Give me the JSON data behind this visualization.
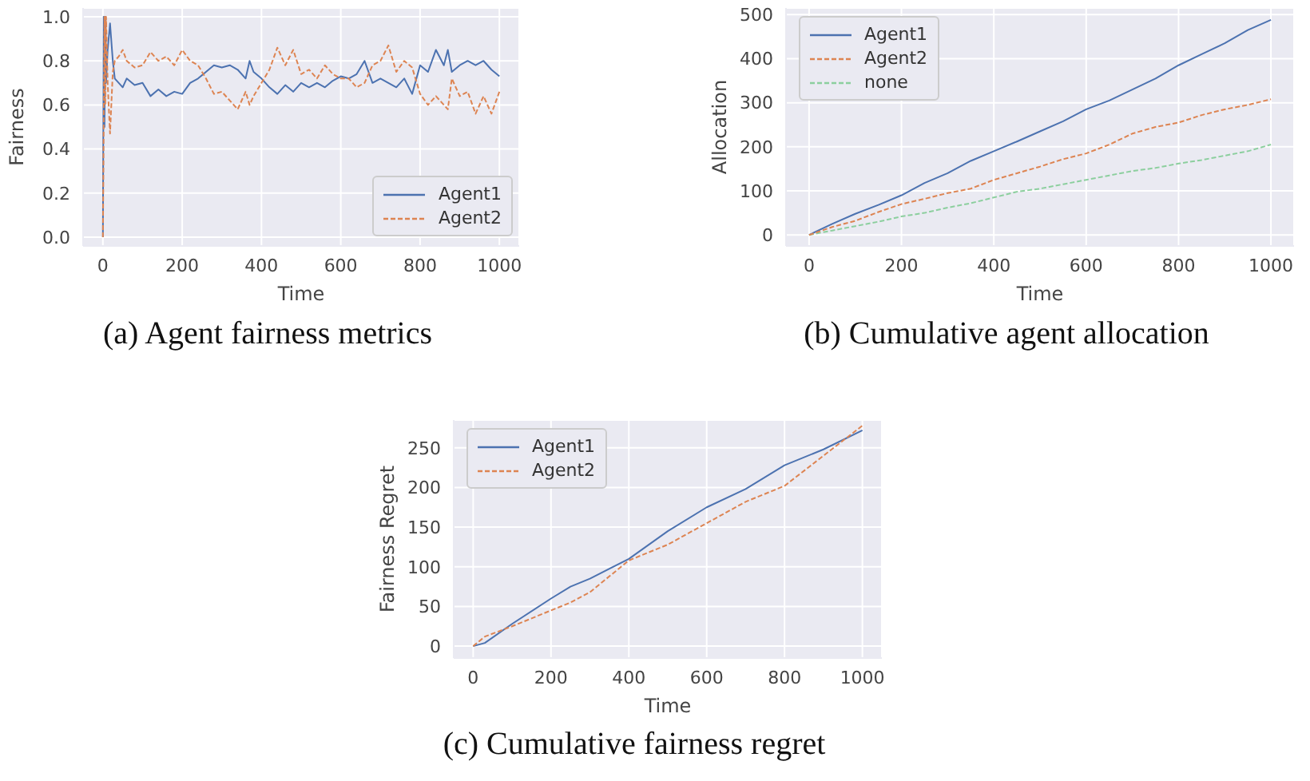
{
  "chart_data": [
    {
      "type": "line",
      "xlabel": "Time",
      "ylabel": "Fairness",
      "annotations": [
        "(a) Agent fairness metrics"
      ],
      "xlim": [
        -50,
        1050
      ],
      "ylim": [
        -0.04,
        1.04
      ],
      "xticks": [
        0,
        200,
        400,
        600,
        800,
        1000
      ],
      "yticks": [
        {
          "value": 0,
          "label": "0.0"
        },
        0.2,
        0.4,
        0.6,
        0.8,
        {
          "value": 1,
          "label": "1.0"
        }
      ],
      "grid": true,
      "legend": "bottom right",
      "marker": "none",
      "x": [
        0,
        2,
        4,
        6,
        8,
        12,
        18,
        25,
        30,
        40,
        50,
        60,
        80,
        100,
        120,
        140,
        160,
        180,
        200,
        220,
        240,
        260,
        280,
        300,
        320,
        340,
        360,
        370,
        380,
        400,
        420,
        440,
        460,
        480,
        500,
        520,
        540,
        560,
        580,
        600,
        620,
        640,
        660,
        680,
        700,
        720,
        740,
        760,
        780,
        800,
        820,
        840,
        860,
        870,
        880,
        900,
        920,
        940,
        960,
        980,
        1000
      ],
      "series": [
        {
          "name": "Agent1",
          "color": "#4c72b0",
          "line_style": "solid",
          "values": [
            0,
            1.0,
            0.5,
            1.0,
            0.7,
            0.85,
            0.97,
            0.8,
            0.72,
            0.7,
            0.68,
            0.72,
            0.69,
            0.7,
            0.64,
            0.67,
            0.64,
            0.66,
            0.65,
            0.7,
            0.72,
            0.75,
            0.78,
            0.77,
            0.78,
            0.76,
            0.72,
            0.8,
            0.75,
            0.72,
            0.68,
            0.65,
            0.69,
            0.66,
            0.7,
            0.68,
            0.7,
            0.68,
            0.71,
            0.73,
            0.72,
            0.74,
            0.8,
            0.7,
            0.72,
            0.7,
            0.68,
            0.72,
            0.65,
            0.78,
            0.75,
            0.85,
            0.78,
            0.85,
            0.75,
            0.78,
            0.8,
            0.78,
            0.8,
            0.76,
            0.73
          ]
        },
        {
          "name": "Agent2",
          "color": "#dd8452",
          "line_style": "dashed",
          "values": [
            0,
            0.5,
            1.0,
            0.6,
            1.0,
            0.7,
            0.47,
            0.75,
            0.8,
            0.82,
            0.85,
            0.8,
            0.77,
            0.78,
            0.84,
            0.8,
            0.82,
            0.78,
            0.85,
            0.8,
            0.78,
            0.72,
            0.65,
            0.66,
            0.62,
            0.58,
            0.66,
            0.6,
            0.64,
            0.7,
            0.76,
            0.86,
            0.78,
            0.85,
            0.74,
            0.76,
            0.72,
            0.78,
            0.74,
            0.72,
            0.72,
            0.68,
            0.7,
            0.78,
            0.8,
            0.87,
            0.75,
            0.8,
            0.77,
            0.65,
            0.6,
            0.64,
            0.6,
            0.58,
            0.72,
            0.64,
            0.66,
            0.56,
            0.64,
            0.56,
            0.66
          ]
        }
      ]
    },
    {
      "type": "line",
      "xlabel": "Time",
      "ylabel": "Allocation",
      "annotations": [
        "(b) Cumulative agent allocation"
      ],
      "xlim": [
        -50,
        1050
      ],
      "ylim": [
        -25,
        515
      ],
      "xticks": [
        0,
        200,
        400,
        600,
        800,
        1000
      ],
      "yticks": [
        0,
        100,
        200,
        300,
        400,
        500
      ],
      "grid": true,
      "legend": "top left",
      "marker": "none",
      "x": [
        0,
        50,
        100,
        150,
        200,
        250,
        300,
        350,
        400,
        450,
        500,
        550,
        600,
        650,
        700,
        750,
        800,
        850,
        900,
        950,
        1000
      ],
      "series": [
        {
          "name": "Agent1",
          "color": "#4c72b0",
          "line_style": "solid",
          "values": [
            0,
            25,
            48,
            68,
            90,
            118,
            140,
            168,
            190,
            212,
            235,
            258,
            285,
            305,
            330,
            355,
            385,
            410,
            435,
            465,
            488
          ]
        },
        {
          "name": "Agent2",
          "color": "#dd8452",
          "line_style": "dashed",
          "values": [
            0,
            18,
            32,
            52,
            70,
            82,
            95,
            105,
            125,
            140,
            155,
            172,
            185,
            205,
            230,
            245,
            255,
            272,
            285,
            295,
            308
          ]
        },
        {
          "name": "none",
          "color": "#8ccf9e",
          "line_style": "dashed",
          "values": [
            0,
            10,
            20,
            30,
            42,
            50,
            62,
            72,
            85,
            98,
            105,
            115,
            125,
            135,
            145,
            152,
            162,
            170,
            180,
            190,
            205
          ]
        }
      ]
    },
    {
      "type": "line",
      "xlabel": "Time",
      "ylabel": "Fairness Regret",
      "annotations": [
        "(c) Cumulative fairness regret"
      ],
      "xlim": [
        -50,
        1050
      ],
      "ylim": [
        -15,
        285
      ],
      "xticks": [
        0,
        200,
        400,
        600,
        800,
        1000
      ],
      "yticks": [
        0,
        50,
        100,
        150,
        200,
        250
      ],
      "grid": true,
      "legend": "top left",
      "marker": "none",
      "x": [
        0,
        30,
        100,
        200,
        250,
        300,
        400,
        500,
        600,
        700,
        800,
        900,
        1000
      ],
      "series": [
        {
          "name": "Agent1",
          "color": "#4c72b0",
          "line_style": "solid",
          "values": [
            0,
            4,
            28,
            60,
            75,
            85,
            110,
            145,
            175,
            198,
            228,
            248,
            272
          ]
        },
        {
          "name": "Agent2",
          "color": "#dd8452",
          "line_style": "dashed",
          "values": [
            0,
            12,
            25,
            45,
            55,
            68,
            108,
            128,
            155,
            182,
            202,
            240,
            278
          ]
        }
      ]
    }
  ]
}
